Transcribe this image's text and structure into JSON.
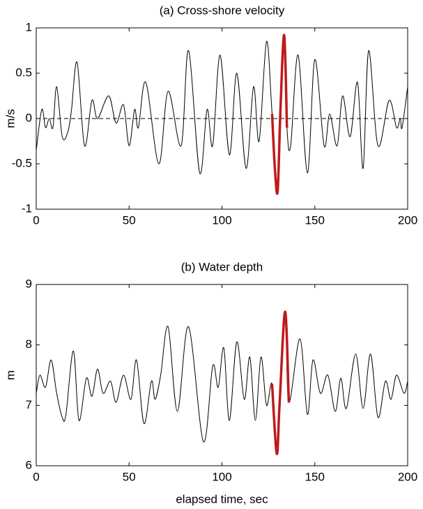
{
  "chart_data": [
    {
      "type": "line",
      "title": "(a) Cross-shore velocity",
      "ylabel": "m/s",
      "xlim": [
        0,
        200
      ],
      "xticks": [
        0,
        50,
        100,
        150,
        200
      ],
      "ylim": [
        -1,
        1
      ],
      "yticks": [
        -1,
        -0.5,
        0,
        0.5,
        1
      ],
      "hline": 0,
      "series": [
        {
          "color": "#000000",
          "x": [
            0,
            3,
            5,
            7,
            9,
            11,
            14,
            17,
            19,
            22,
            26,
            30,
            33,
            39,
            43,
            47,
            50,
            53,
            55,
            59,
            66,
            71,
            78,
            82,
            88,
            92,
            95,
            99,
            104,
            108,
            113,
            117,
            120,
            124,
            127,
            130,
            133.5,
            135,
            137,
            141,
            146,
            150,
            155,
            158,
            162,
            165,
            169,
            173,
            176,
            179,
            184,
            190,
            194,
            196,
            197,
            200
          ],
          "values": [
            -0.35,
            0.1,
            -0.1,
            0,
            -0.1,
            0.35,
            -0.2,
            -0.15,
            0.1,
            0.62,
            -0.3,
            0.2,
            0,
            0.25,
            -0.05,
            0.15,
            -0.3,
            0.1,
            -0.1,
            0.4,
            -0.5,
            0.3,
            -0.3,
            0.75,
            -0.6,
            0.1,
            -0.3,
            0.7,
            -0.4,
            0.5,
            -0.55,
            0.35,
            -0.25,
            0.85,
            0.05,
            -0.8,
            0.92,
            -0.1,
            -0.3,
            0.7,
            -0.6,
            0.65,
            -0.3,
            0.05,
            -0.3,
            0.25,
            -0.2,
            0.4,
            -0.55,
            0.75,
            -0.3,
            0.2,
            -0.1,
            0,
            -0.1,
            0.35
          ]
        },
        {
          "color": "#c0191b",
          "x": [
            127,
            128.5,
            130,
            131.5,
            133.5,
            135
          ],
          "values": [
            0.05,
            -0.55,
            -0.8,
            0.1,
            0.92,
            -0.1
          ]
        }
      ]
    },
    {
      "type": "line",
      "title": "(b) Water depth",
      "ylabel": "m",
      "xlabel": "elapsed time, sec",
      "xlim": [
        0,
        200
      ],
      "xticks": [
        0,
        50,
        100,
        150,
        200
      ],
      "ylim": [
        6,
        9
      ],
      "yticks": [
        6,
        7,
        8,
        9
      ],
      "series": [
        {
          "color": "#000000",
          "x": [
            0,
            2,
            5,
            8,
            11,
            14,
            16,
            20,
            23,
            27,
            30,
            33,
            36,
            40,
            43,
            47,
            51,
            54,
            58,
            62,
            64,
            67,
            71,
            76,
            82,
            90,
            95,
            98,
            101,
            104,
            108,
            112,
            115,
            118,
            121,
            124,
            127,
            129.5,
            131,
            134,
            136,
            142,
            146,
            149,
            153,
            157,
            161,
            164,
            167,
            172,
            176,
            180,
            184,
            188,
            191,
            194,
            198,
            200
          ],
          "values": [
            7.2,
            7.5,
            7.3,
            7.75,
            7.2,
            6.8,
            6.85,
            7.9,
            6.75,
            7.45,
            7.15,
            7.6,
            7.2,
            7.4,
            7.05,
            7.5,
            7.1,
            7.75,
            6.7,
            7.4,
            7.1,
            7.5,
            8.3,
            6.9,
            8.3,
            6.4,
            7.65,
            7.3,
            7.95,
            6.75,
            8.05,
            7.1,
            7.8,
            6.75,
            7.8,
            7.0,
            7.35,
            6.2,
            7.0,
            8.55,
            7.05,
            8.1,
            6.85,
            7.75,
            7.2,
            7.5,
            6.9,
            7.45,
            6.95,
            7.85,
            6.95,
            7.85,
            6.8,
            7.4,
            7.1,
            7.5,
            7.2,
            7.4
          ]
        },
        {
          "color": "#c0191b",
          "x": [
            127,
            129.5,
            131,
            134,
            136
          ],
          "values": [
            7.35,
            6.2,
            7.0,
            8.55,
            7.05
          ]
        }
      ]
    }
  ]
}
